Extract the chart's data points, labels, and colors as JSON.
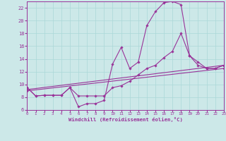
{
  "xlabel": "Windchill (Refroidissement éolien,°C)",
  "background_color": "#cce8e8",
  "line_color": "#993399",
  "grid_color": "#aad8d8",
  "xlim": [
    0,
    23
  ],
  "ylim": [
    6,
    23
  ],
  "xticks": [
    0,
    1,
    2,
    3,
    4,
    5,
    6,
    7,
    8,
    9,
    10,
    11,
    12,
    13,
    14,
    15,
    16,
    17,
    18,
    19,
    20,
    21,
    22,
    23
  ],
  "yticks": [
    6,
    8,
    10,
    12,
    14,
    16,
    18,
    20,
    22
  ],
  "series": [
    {
      "x": [
        0,
        1,
        2,
        3,
        4,
        5,
        6,
        7,
        8,
        9,
        10,
        11,
        12,
        13,
        14,
        15,
        16,
        17,
        18,
        19,
        20,
        21,
        22,
        23
      ],
      "y": [
        9.5,
        8.2,
        8.3,
        8.3,
        8.3,
        9.5,
        6.5,
        7.0,
        7.0,
        7.5,
        13.2,
        15.8,
        12.5,
        13.5,
        19.2,
        21.4,
        22.8,
        23.0,
        22.5,
        14.5,
        13.5,
        12.5,
        12.5,
        13.0
      ]
    },
    {
      "x": [
        0,
        1,
        2,
        3,
        4,
        5,
        6,
        7,
        8,
        9,
        10,
        11,
        12,
        13,
        14,
        15,
        16,
        17,
        18,
        19,
        20,
        21,
        22,
        23
      ],
      "y": [
        9.5,
        8.2,
        8.3,
        8.3,
        8.3,
        9.5,
        8.2,
        8.2,
        8.2,
        8.2,
        9.5,
        9.8,
        10.5,
        11.5,
        12.5,
        13.0,
        14.2,
        15.2,
        18.0,
        14.5,
        13.0,
        12.5,
        12.5,
        13.0
      ]
    },
    {
      "x": [
        0,
        23
      ],
      "y": [
        9.2,
        13.0
      ]
    },
    {
      "x": [
        0,
        23
      ],
      "y": [
        9.0,
        12.5
      ]
    }
  ]
}
